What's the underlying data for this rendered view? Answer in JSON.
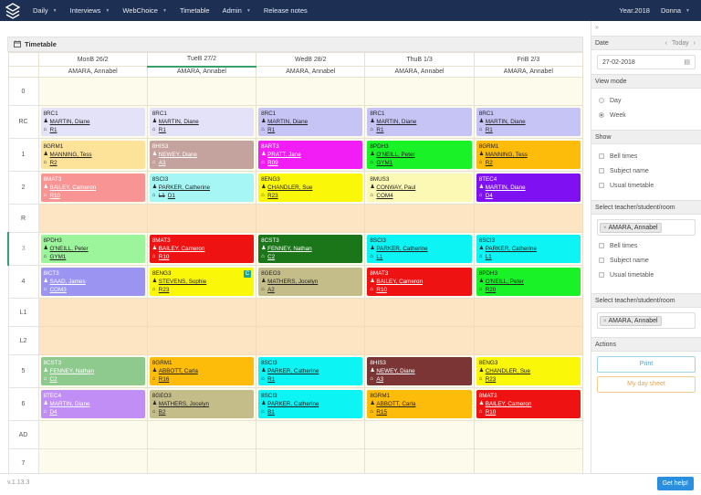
{
  "nav": {
    "items": [
      {
        "label": "Daily",
        "dropdown": true
      },
      {
        "label": "Interviews",
        "dropdown": true
      },
      {
        "label": "WebChoice",
        "dropdown": true
      },
      {
        "label": "Timetable",
        "dropdown": false
      },
      {
        "label": "Admin",
        "dropdown": true
      },
      {
        "label": "Release notes",
        "dropdown": false
      }
    ],
    "year": "Year.2018",
    "user": "Donna",
    "caret": "▼"
  },
  "timetable": {
    "title": "Timetable",
    "days": [
      {
        "label": "MonB 26/2",
        "person": "AMARA, Annabel"
      },
      {
        "label": "TueB 27/2",
        "person": "AMARA, Annabel",
        "active": true
      },
      {
        "label": "WedB 28/2",
        "person": "AMARA, Annabel"
      },
      {
        "label": "ThuB 1/3",
        "person": "AMARA, Annabel"
      },
      {
        "label": "FriB 2/3",
        "person": "AMARA, Annabel"
      }
    ],
    "periods": [
      {
        "label": "0",
        "type": "empty"
      },
      {
        "label": "RC",
        "type": "lessons",
        "cells": [
          {
            "code": "8RC1",
            "teacher": "MARTIN, Diane",
            "room": "R1",
            "bg": "#e4e2f8",
            "text": "dark"
          },
          {
            "code": "8RC1",
            "teacher": "MARTIN, Diane",
            "room": "R1",
            "bg": "#e4e2f8",
            "text": "dark"
          },
          {
            "code": "8RC1",
            "teacher": "MARTIN, Diane",
            "room": "R1",
            "bg": "#c6c3f5",
            "text": "dark"
          },
          {
            "code": "8RC1",
            "teacher": "MARTIN, Diane",
            "room": "R1",
            "bg": "#c6c3f5",
            "text": "dark"
          },
          {
            "code": "8RC1",
            "teacher": "MARTIN, Diane",
            "room": "R1",
            "bg": "#c6c3f5",
            "text": "dark"
          }
        ]
      },
      {
        "label": "1",
        "type": "lessons",
        "cells": [
          {
            "code": "8GRM1",
            "teacher": "MANNING, Tess",
            "room": "R2",
            "bg": "#fde29a",
            "text": "dark"
          },
          {
            "code": "8HIS3",
            "teacher": "NEWEY, Diane",
            "room": "A3",
            "bg": "#c4a39f",
            "text": "light"
          },
          {
            "code": "8ART3",
            "teacher": "PRATT, Jane",
            "room": "R09",
            "bg": "#f21cf5",
            "text": "light"
          },
          {
            "code": "8PDH3",
            "teacher": "O'NEILL, Peter",
            "room": "GYM1",
            "bg": "#19f227",
            "text": "dark"
          },
          {
            "code": "8GRM1",
            "teacher": "MANNING, Tess",
            "room": "R2",
            "bg": "#fdbb0a",
            "text": "dark"
          }
        ]
      },
      {
        "label": "2",
        "type": "lessons",
        "cells": [
          {
            "code": "8MAT3",
            "teacher": "BAILEY, Cameron",
            "room": "R10",
            "bg": "#f99494",
            "text": "light"
          },
          {
            "code": "8SCI3",
            "teacher": "PARKER, Catherine",
            "room": "D1",
            "prev_room": "L1",
            "bg": "#a5f6f4",
            "text": "dark"
          },
          {
            "code": "8ENG3",
            "teacher": "CHANDLER, Sue",
            "room": "R23",
            "bg": "#fbf708",
            "text": "dark"
          },
          {
            "code": "8MUS3",
            "teacher": "CONWAY, Paul",
            "room": "COM4",
            "bg": "#fcf9b4",
            "text": "dark"
          },
          {
            "code": "8TEC4",
            "teacher": "MARTIN, Diane",
            "room": "D4",
            "bg": "#7f10f2",
            "text": "light"
          }
        ]
      },
      {
        "label": "R",
        "type": "break"
      },
      {
        "label": "3",
        "type": "lessons",
        "current": true,
        "cells": [
          {
            "code": "8PDH3",
            "teacher": "O'NEILL, Peter",
            "room": "GYM1",
            "bg": "#9cf59a",
            "text": "dark"
          },
          {
            "code": "8MAT3",
            "teacher": "BAILEY, Cameron",
            "room": "R10",
            "bg": "#ef1212",
            "text": "light"
          },
          {
            "code": "8CST3",
            "teacher": "FENNEY, Nathan",
            "room": "C2",
            "bg": "#1b7519",
            "text": "light"
          },
          {
            "code": "8SCI3",
            "teacher": "PARKER, Catherine",
            "room": "L1",
            "bg": "#0cf4f4",
            "text": "dark"
          },
          {
            "code": "8SCI3",
            "teacher": "PARKER, Catherine",
            "room": "L1",
            "bg": "#0cf4f4",
            "text": "dark"
          }
        ]
      },
      {
        "label": "4",
        "type": "lessons",
        "cells": [
          {
            "code": "8ICT3",
            "teacher": "SAAD, James",
            "room": "COM3",
            "bg": "#9b95f1",
            "text": "light"
          },
          {
            "code": "8ENG3",
            "teacher": "STEVENS, Sophie",
            "room": "R23",
            "bg": "#fbf708",
            "text": "dark",
            "badge": "C"
          },
          {
            "code": "8GEO3",
            "teacher": "MATHERS, Jocelyn",
            "room": "A2",
            "bg": "#c4bd8a",
            "text": "dark"
          },
          {
            "code": "8MAT3",
            "teacher": "BAILEY, Cameron",
            "room": "R10",
            "bg": "#ef1212",
            "text": "light"
          },
          {
            "code": "8PDH3",
            "teacher": "O'NEILL, Peter",
            "room": "R20",
            "bg": "#19f227",
            "text": "dark"
          }
        ]
      },
      {
        "label": "L1",
        "type": "break"
      },
      {
        "label": "L2",
        "type": "break"
      },
      {
        "label": "5",
        "type": "lessons",
        "cells": [
          {
            "code": "8CST3",
            "teacher": "FENNEY, Nathan",
            "room": "C2",
            "bg": "#8ec98e",
            "text": "light"
          },
          {
            "code": "8GRM1",
            "teacher": "ABBOTT, Carla",
            "room": "R16",
            "bg": "#fdbb0a",
            "text": "dark"
          },
          {
            "code": "8SCI3",
            "teacher": "PARKER, Catherine",
            "room": "R1",
            "bg": "#0cf4f4",
            "text": "dark"
          },
          {
            "code": "8HIS3",
            "teacher": "NEWEY, Diane",
            "room": "A3",
            "bg": "#7b3535",
            "text": "light"
          },
          {
            "code": "8ENG3",
            "teacher": "CHANDLER, Sue",
            "room": "R23",
            "bg": "#fbf708",
            "text": "dark"
          }
        ]
      },
      {
        "label": "6",
        "type": "lessons",
        "cells": [
          {
            "code": "8TEC4",
            "teacher": "MARTIN, Diane",
            "room": "D4",
            "bg": "#c18ef5",
            "text": "light"
          },
          {
            "code": "8GEO3",
            "teacher": "MATHERS, Jocelyn",
            "room": "B2",
            "bg": "#c4bd8a",
            "text": "dark"
          },
          {
            "code": "8SCI3",
            "teacher": "PARKER, Catherine",
            "room": "B1",
            "bg": "#0cf4f4",
            "text": "dark"
          },
          {
            "code": "8GRM1",
            "teacher": "ABBOTT, Carla",
            "room": "R15",
            "bg": "#fdbb0a",
            "text": "dark"
          },
          {
            "code": "8MAT3",
            "teacher": "BAILEY, Cameron",
            "room": "R10",
            "bg": "#ef1212",
            "text": "light"
          }
        ]
      },
      {
        "label": "AD",
        "type": "empty"
      },
      {
        "label": "7",
        "type": "empty"
      }
    ]
  },
  "sidebar": {
    "collapse_icon": "»",
    "date": {
      "label": "Date",
      "today": "Today",
      "prev": "‹",
      "next": "›",
      "value": "27-02-2018"
    },
    "view_mode": {
      "label": "View mode",
      "options": [
        {
          "label": "Day",
          "checked": false
        },
        {
          "label": "Week",
          "checked": true
        }
      ]
    },
    "show": {
      "label": "Show",
      "options": [
        "Bell times",
        "Subject name",
        "Usual timetable"
      ]
    },
    "select1": {
      "label": "Select teacher/student/room",
      "tag": "AMARA, Annabel",
      "options": [
        "Bell times",
        "Subject name",
        "Usual timetable"
      ]
    },
    "select2": {
      "label": "Select teacher/student/room",
      "tag": "AMARA, Annabel"
    },
    "actions": {
      "label": "Actions",
      "print": "Print",
      "day_sheet": "My day sheet"
    }
  },
  "footer": {
    "version": "v.1.13.3",
    "help": "Get help!"
  }
}
